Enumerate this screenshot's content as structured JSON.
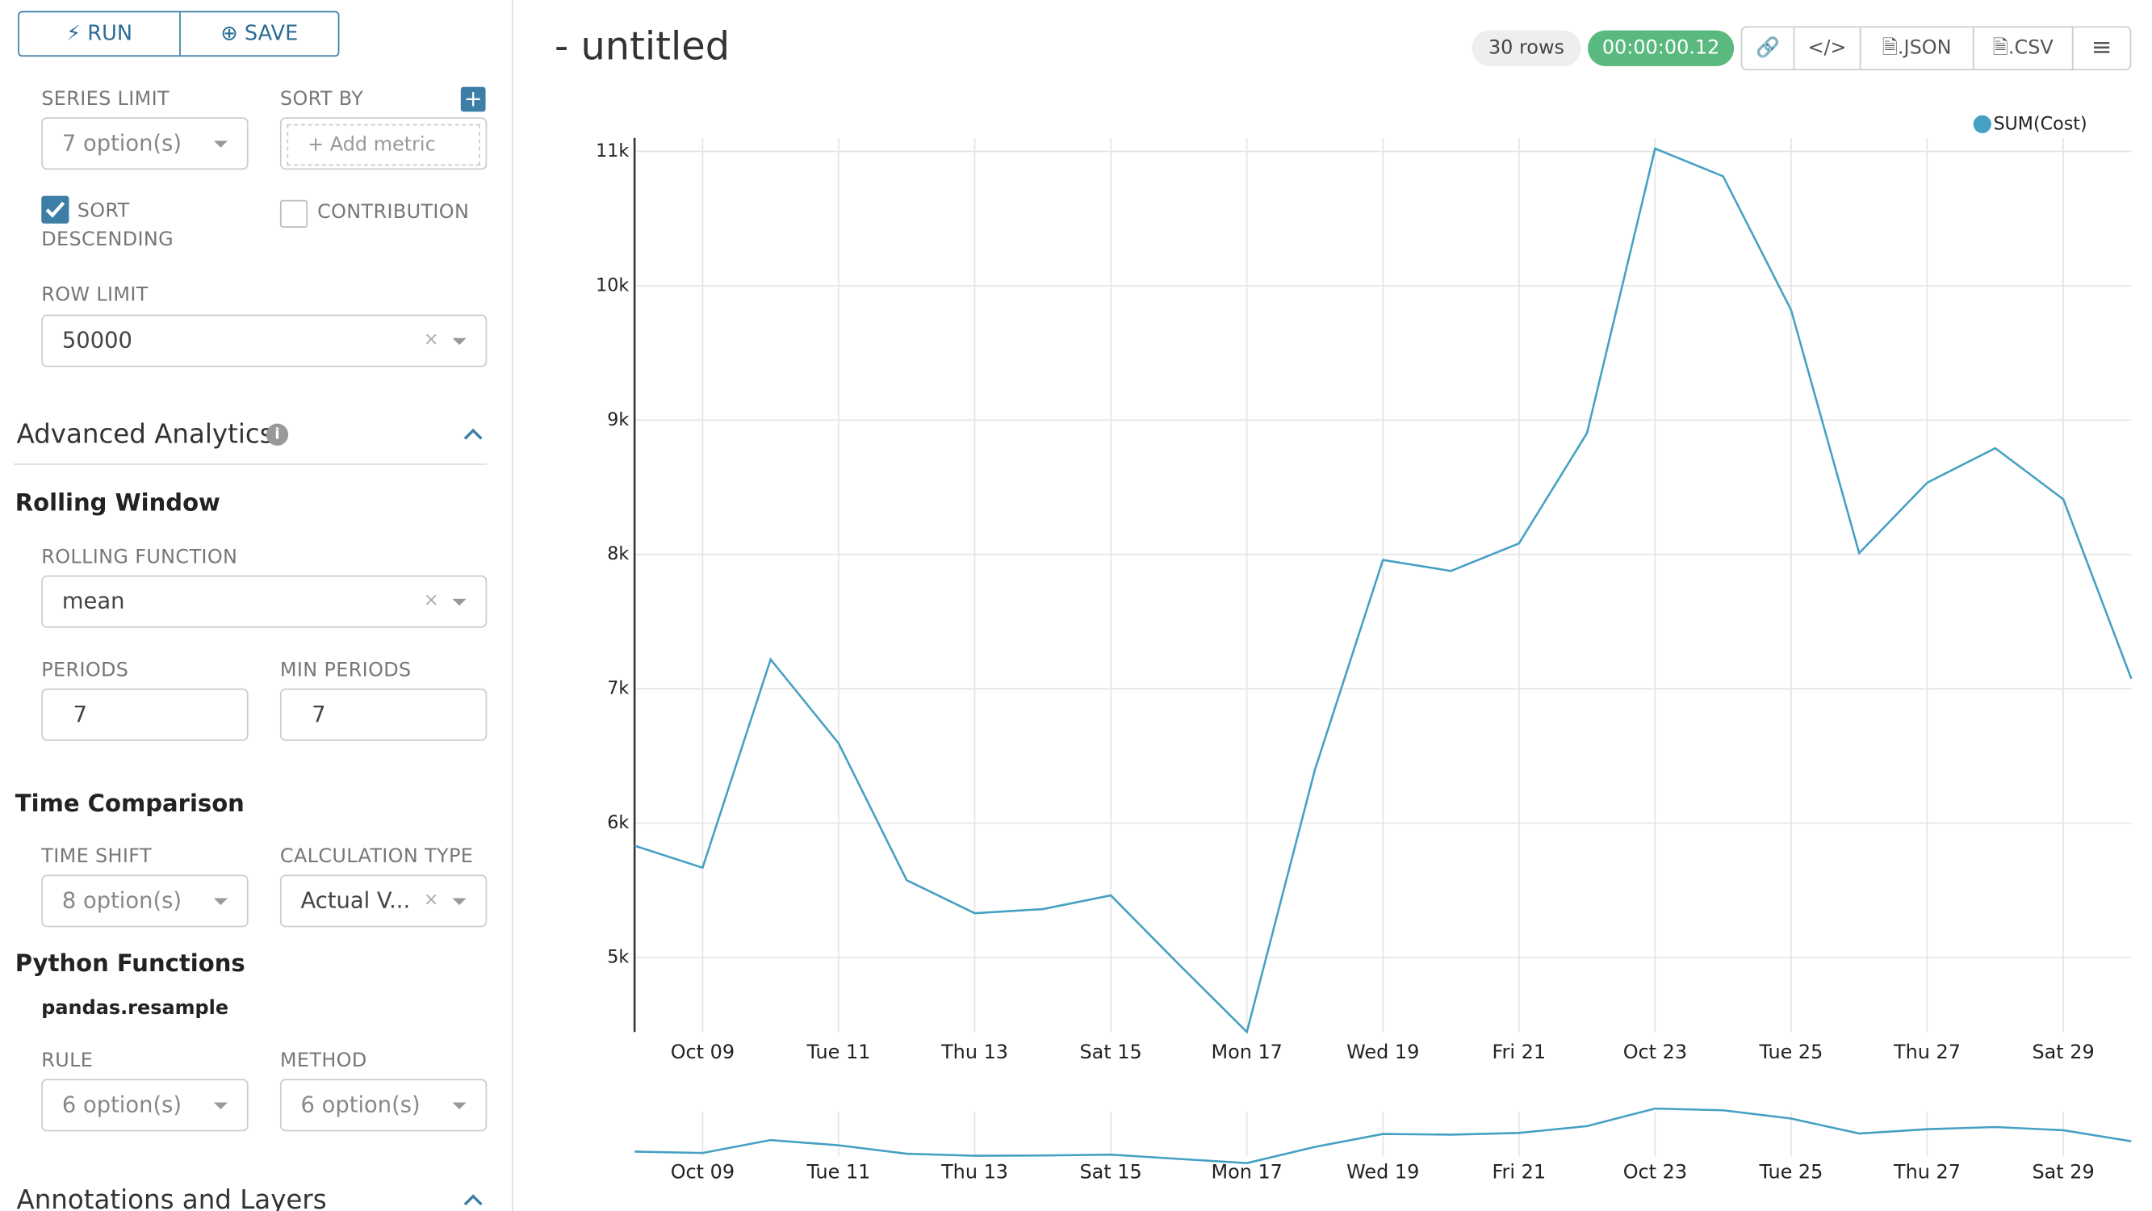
{
  "toolbar": {
    "run": "RUN",
    "save": "SAVE"
  },
  "controls": {
    "series_limit": {
      "label": "SERIES LIMIT",
      "value": "7 option(s)"
    },
    "sort_by": {
      "label": "SORT BY",
      "placeholder": "Add metric"
    },
    "sort_descending": {
      "label": "SORT DESCENDING",
      "checked": true
    },
    "contribution": {
      "label": "CONTRIBUTION",
      "checked": false
    },
    "row_limit": {
      "label": "ROW LIMIT",
      "value": "50000"
    }
  },
  "advanced_analytics": {
    "title": "Advanced Analytics",
    "rolling_window": {
      "heading": "Rolling Window",
      "rolling_function": {
        "label": "ROLLING FUNCTION",
        "value": "mean"
      },
      "periods": {
        "label": "PERIODS",
        "value": "7"
      },
      "min_periods": {
        "label": "MIN PERIODS",
        "value": "7"
      }
    },
    "time_comparison": {
      "heading": "Time Comparison",
      "time_shift": {
        "label": "TIME SHIFT",
        "value": "8 option(s)"
      },
      "calculation_type": {
        "label": "CALCULATION TYPE",
        "value": "Actual V..."
      }
    },
    "python_functions": {
      "heading": "Python Functions",
      "subheading": "pandas.resample",
      "rule": {
        "label": "RULE",
        "value": "6 option(s)"
      },
      "method": {
        "label": "METHOD",
        "value": "6 option(s)"
      }
    }
  },
  "annotations": {
    "title": "Annotations and Layers"
  },
  "header": {
    "title": "- untitled",
    "row_count": "30 rows",
    "duration": "00:00:00.12",
    "json": ".JSON",
    "csv": ".CSV"
  },
  "chart_data": {
    "type": "line",
    "categories": [
      null,
      "Oct 09",
      null,
      "Tue 11",
      null,
      "Thu 13",
      null,
      "Sat 15",
      null,
      "Mon 17",
      null,
      "Wed 19",
      null,
      "Fri 21",
      null,
      "Oct 23",
      null,
      "Tue 25",
      null,
      "Thu 27",
      null,
      "Sat 29",
      null
    ],
    "series": [
      {
        "name": "SUM(Cost)",
        "color": "#45a0c4",
        "values": [
          5832,
          5668,
          7219,
          6593,
          5575,
          5329,
          5360,
          5462,
          4949,
          4445,
          6397,
          7959,
          7877,
          8082,
          8904,
          11021,
          10815,
          9819,
          8010,
          8534,
          8791,
          8411,
          7075
        ]
      }
    ],
    "ylim": [
      4445,
      11100
    ],
    "yticks": [
      {
        "value": 5000,
        "label": "5k"
      },
      {
        "value": 6000,
        "label": "6k"
      },
      {
        "value": 7000,
        "label": "7k"
      },
      {
        "value": 8000,
        "label": "8k"
      },
      {
        "value": 9000,
        "label": "9k"
      },
      {
        "value": 10000,
        "label": "10k"
      },
      {
        "value": 11000,
        "label": "11k"
      }
    ],
    "grid": true,
    "legend": "top-right"
  }
}
